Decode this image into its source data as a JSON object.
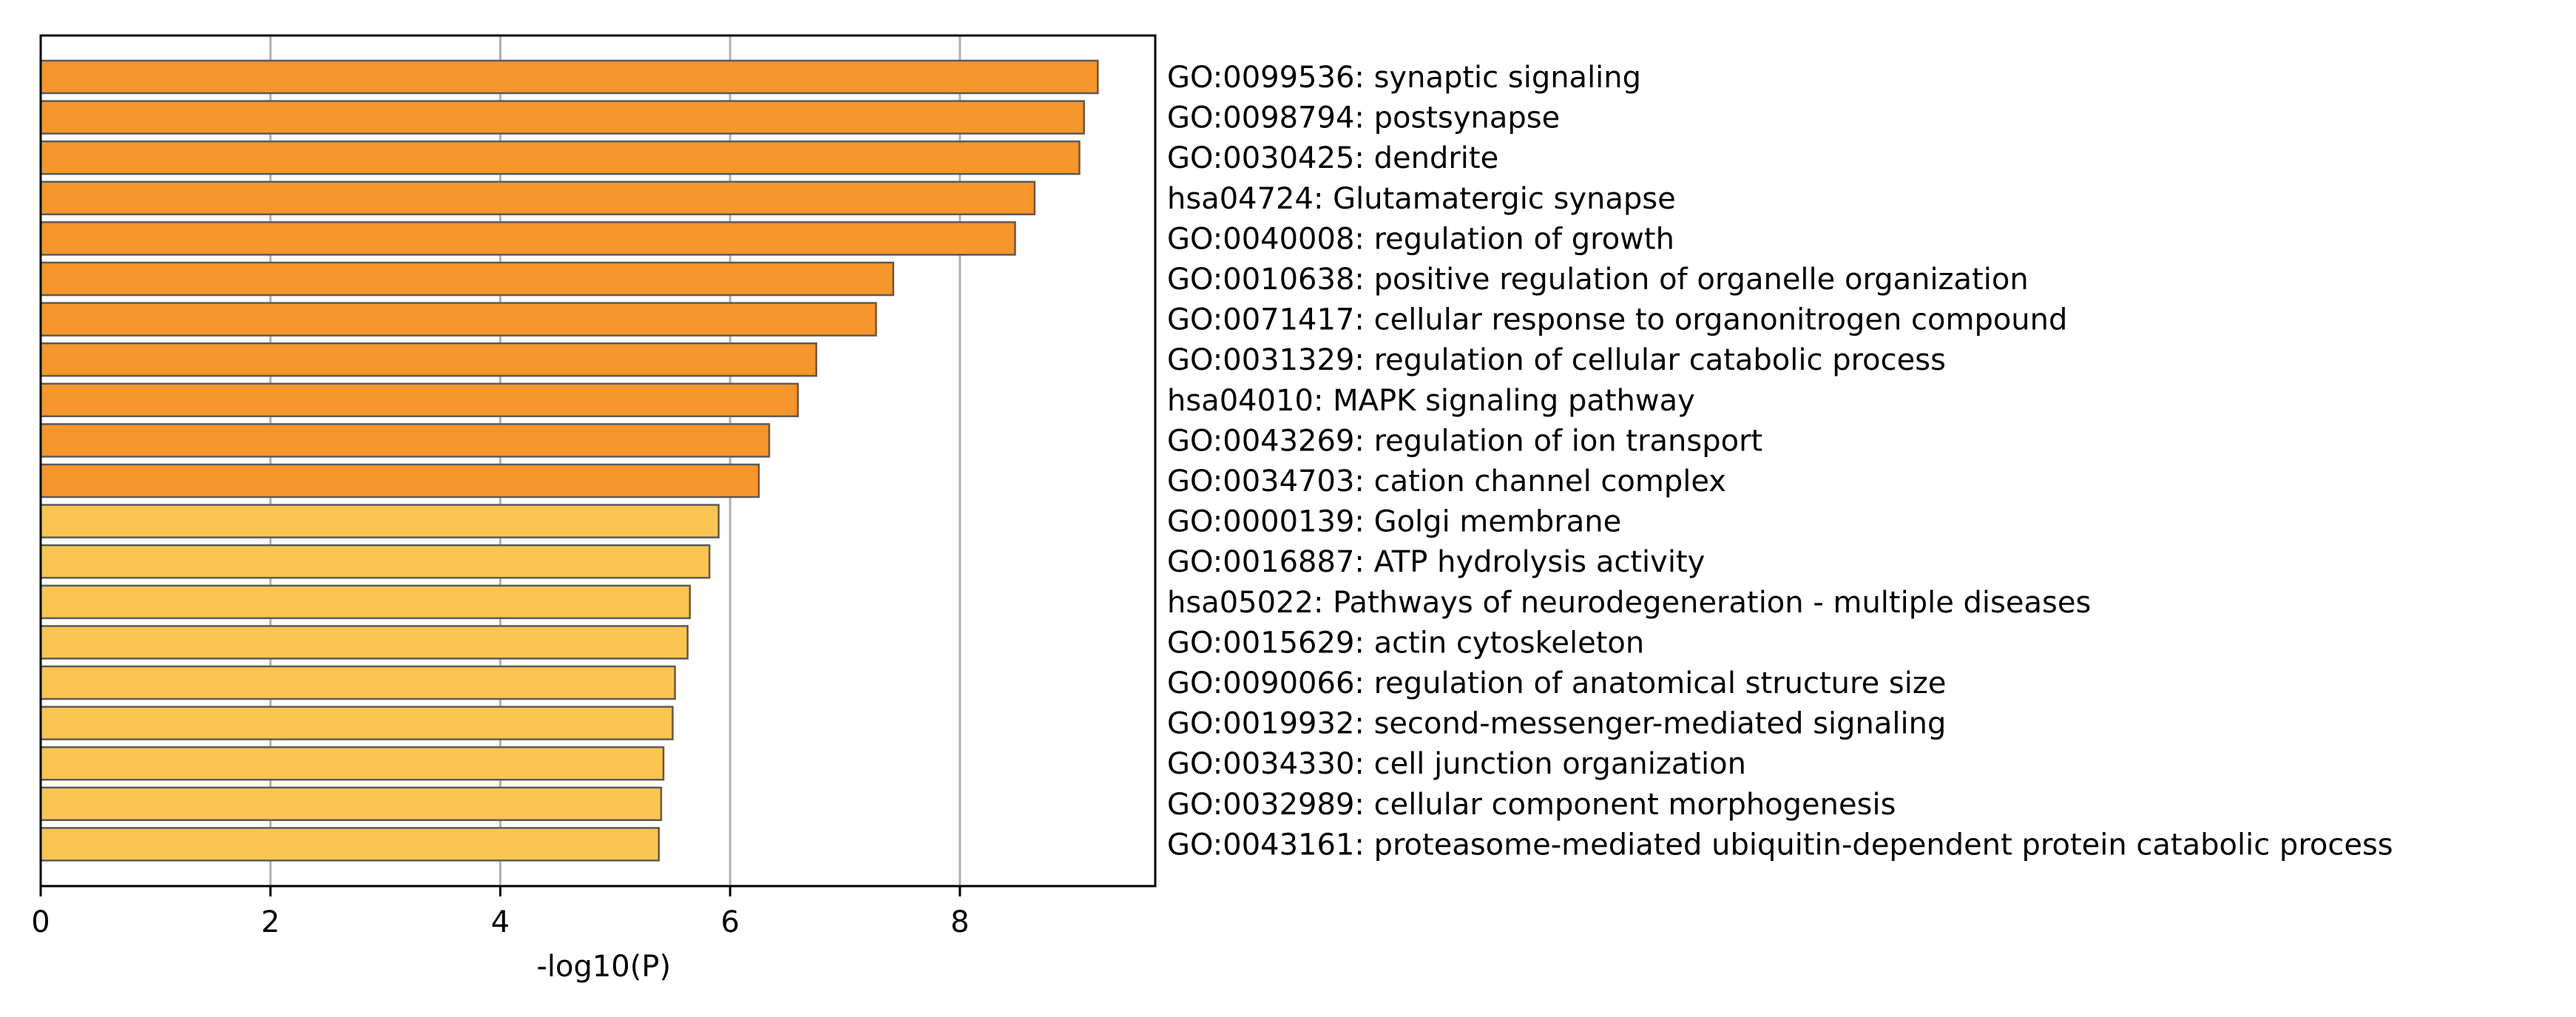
{
  "chart_data": {
    "type": "bar",
    "orientation": "horizontal",
    "title": "",
    "xlabel": "-log10(P)",
    "ylabel": "",
    "xlim": [
      0,
      9.7
    ],
    "xticks": [
      0,
      2,
      4,
      6,
      8
    ],
    "grid": "x-major",
    "colors": {
      "strong": "#F7962A",
      "light": "#FBC552",
      "edge": "#5a5a5a",
      "grid": "#b0b0b0"
    },
    "bars": [
      {
        "label": "GO:0099536: synaptic signaling",
        "value": 9.2,
        "group": "strong"
      },
      {
        "label": "GO:0098794: postsynapse",
        "value": 9.08,
        "group": "strong"
      },
      {
        "label": "GO:0030425: dendrite",
        "value": 9.04,
        "group": "strong"
      },
      {
        "label": "hsa04724: Glutamatergic synapse",
        "value": 8.65,
        "group": "strong"
      },
      {
        "label": "GO:0040008: regulation of growth",
        "value": 8.48,
        "group": "strong"
      },
      {
        "label": "GO:0010638: positive regulation of organelle organization",
        "value": 7.42,
        "group": "strong"
      },
      {
        "label": "GO:0071417: cellular response to organonitrogen compound",
        "value": 7.27,
        "group": "strong"
      },
      {
        "label": "GO:0031329: regulation of cellular catabolic process",
        "value": 6.75,
        "group": "strong"
      },
      {
        "label": "hsa04010: MAPK signaling pathway",
        "value": 6.59,
        "group": "strong"
      },
      {
        "label": "GO:0043269: regulation of ion transport",
        "value": 6.34,
        "group": "strong"
      },
      {
        "label": "GO:0034703: cation channel complex",
        "value": 6.25,
        "group": "strong"
      },
      {
        "label": "GO:0000139: Golgi membrane",
        "value": 5.9,
        "group": "light"
      },
      {
        "label": "GO:0016887: ATP hydrolysis activity",
        "value": 5.82,
        "group": "light"
      },
      {
        "label": "hsa05022: Pathways of neurodegeneration - multiple diseases",
        "value": 5.65,
        "group": "light"
      },
      {
        "label": "GO:0015629: actin cytoskeleton",
        "value": 5.63,
        "group": "light"
      },
      {
        "label": "GO:0090066: regulation of anatomical structure size",
        "value": 5.52,
        "group": "light"
      },
      {
        "label": "GO:0019932: second-messenger-mediated signaling",
        "value": 5.5,
        "group": "light"
      },
      {
        "label": "GO:0034330: cell junction organization",
        "value": 5.42,
        "group": "light"
      },
      {
        "label": "GO:0032989: cellular component morphogenesis",
        "value": 5.4,
        "group": "light"
      },
      {
        "label": "GO:0043161: proteasome-mediated ubiquitin-dependent protein catabolic process",
        "value": 5.38,
        "group": "light"
      }
    ]
  }
}
